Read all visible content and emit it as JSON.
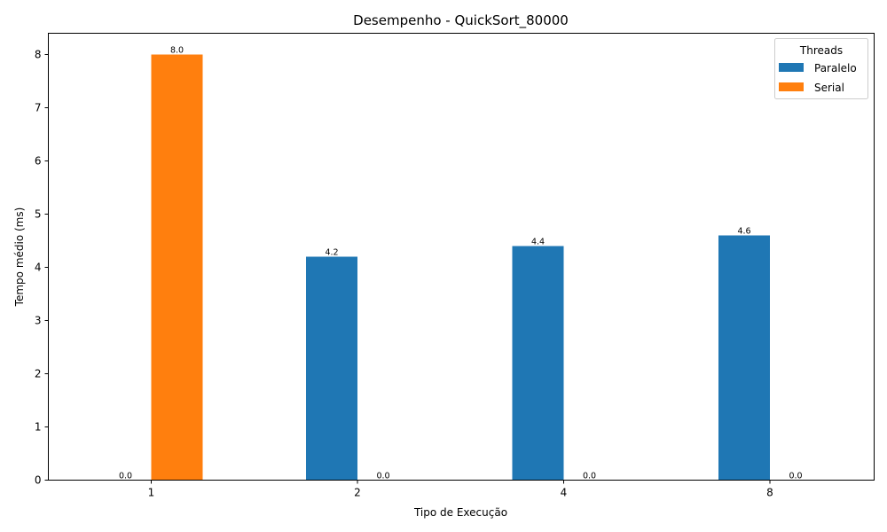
{
  "chart_data": {
    "type": "bar",
    "title": "Desempenho - QuickSort_80000",
    "xlabel": "Tipo de Execução",
    "ylabel": "Tempo médio (ms)",
    "categories": [
      "1",
      "2",
      "4",
      "8"
    ],
    "series": [
      {
        "name": "Paralelo",
        "color": "#1f77b4",
        "values": [
          0.0,
          4.2,
          4.4,
          4.6
        ],
        "labels": [
          "0.0",
          "4.2",
          "4.4",
          "4.6"
        ]
      },
      {
        "name": "Serial",
        "color": "#ff7f0e",
        "values": [
          8.0,
          0.0,
          0.0,
          0.0
        ],
        "labels": [
          "8.0",
          "0.0",
          "0.0",
          "0.0"
        ]
      }
    ],
    "ylim": [
      0,
      8.4
    ],
    "yticks": [
      "0",
      "1",
      "2",
      "3",
      "4",
      "5",
      "6",
      "7",
      "8"
    ],
    "legend": {
      "title": "Threads",
      "placement": "top-right"
    },
    "grid": false
  }
}
